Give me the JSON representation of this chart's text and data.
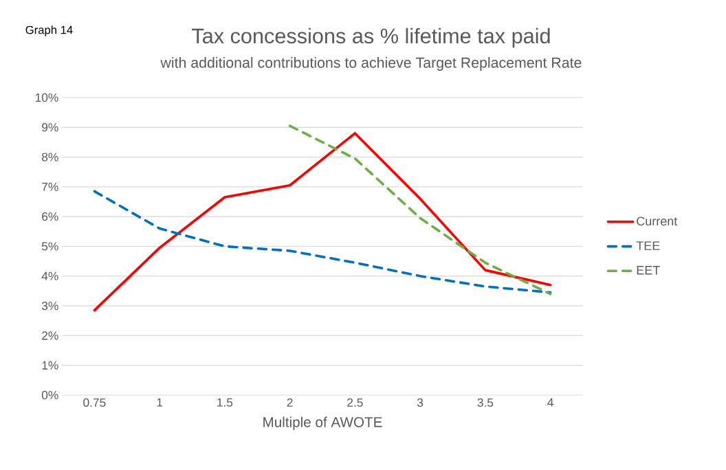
{
  "chart_data": {
    "type": "line",
    "title": "Tax concessions  as % lifetime tax paid",
    "subtitle": "with additional contributions to achieve Target Replacement Rate",
    "xlabel": "Multiple of AWOTE",
    "annotations": [
      "Graph 14"
    ],
    "categories": [
      "0.75",
      "1",
      "1.5",
      "2",
      "2.5",
      "3",
      "3.5",
      "4"
    ],
    "series": [
      {
        "name": "Current",
        "color": "#ff0000",
        "line_style": "solid",
        "values": [
          2.85,
          4.95,
          6.65,
          7.05,
          8.8,
          6.6,
          4.2,
          3.7
        ]
      },
      {
        "name": "TEE",
        "color": "#0070c0",
        "line_style": "dashed",
        "values": [
          6.85,
          5.6,
          5.0,
          4.85,
          4.45,
          4.0,
          3.65,
          3.45
        ]
      },
      {
        "name": "EET",
        "color": "#70ad47",
        "line_style": "dashed",
        "values": [
          null,
          null,
          null,
          9.05,
          7.95,
          5.95,
          4.45,
          3.4
        ]
      }
    ],
    "ylim": [
      0,
      10
    ],
    "yticks": [
      {
        "value": 0,
        "label": "0%"
      },
      {
        "value": 1,
        "label": "1%"
      },
      {
        "value": 2,
        "label": "2%"
      },
      {
        "value": 3,
        "label": "3%"
      },
      {
        "value": 4,
        "label": "4%"
      },
      {
        "value": 5,
        "label": "5%"
      },
      {
        "value": 6,
        "label": "6%"
      },
      {
        "value": 7,
        "label": "7%"
      },
      {
        "value": 8,
        "label": "8%"
      },
      {
        "value": 9,
        "label": "9%"
      },
      {
        "value": 10,
        "label": "10%"
      }
    ],
    "grid": "y",
    "legend": "right",
    "marker": "none"
  }
}
